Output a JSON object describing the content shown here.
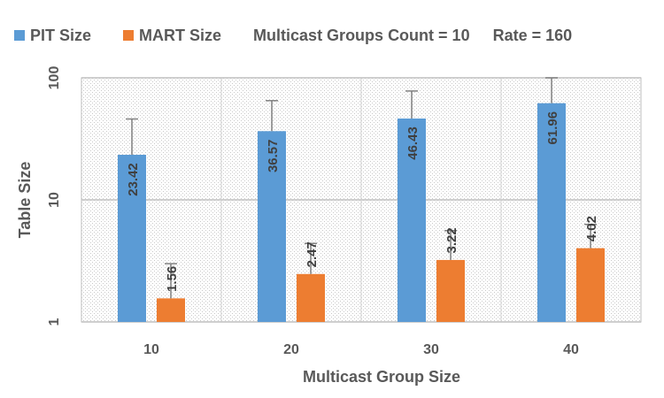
{
  "chart_data": {
    "type": "bar",
    "title": "",
    "scale": "log",
    "categories": [
      "10",
      "20",
      "30",
      "40"
    ],
    "series": [
      {
        "name": "PIT Size",
        "color": "#5b9bd5",
        "values": [
          23.42,
          36.57,
          46.43,
          61.96
        ],
        "labels": [
          "23.42",
          "36.57",
          "46.43",
          "61.96"
        ],
        "error_upper": [
          46,
          65,
          78,
          100
        ]
      },
      {
        "name": "MART Size",
        "color": "#ed7d31",
        "values": [
          1.56,
          2.47,
          3.22,
          4.02
        ],
        "labels": [
          "1.56",
          "2.47",
          "3.22",
          "4.02"
        ],
        "error_upper": [
          3.0,
          4.4,
          5.6,
          6.3
        ]
      }
    ],
    "xlabel": "Multicast Group Size",
    "ylabel": "Table Size",
    "ylim": [
      1,
      100
    ],
    "yticks": [
      "1",
      "10",
      "100"
    ],
    "annotations": [
      "Multicast Groups Count = 10",
      "Rate = 160"
    ],
    "grid": true,
    "legend_position": "top-left"
  }
}
